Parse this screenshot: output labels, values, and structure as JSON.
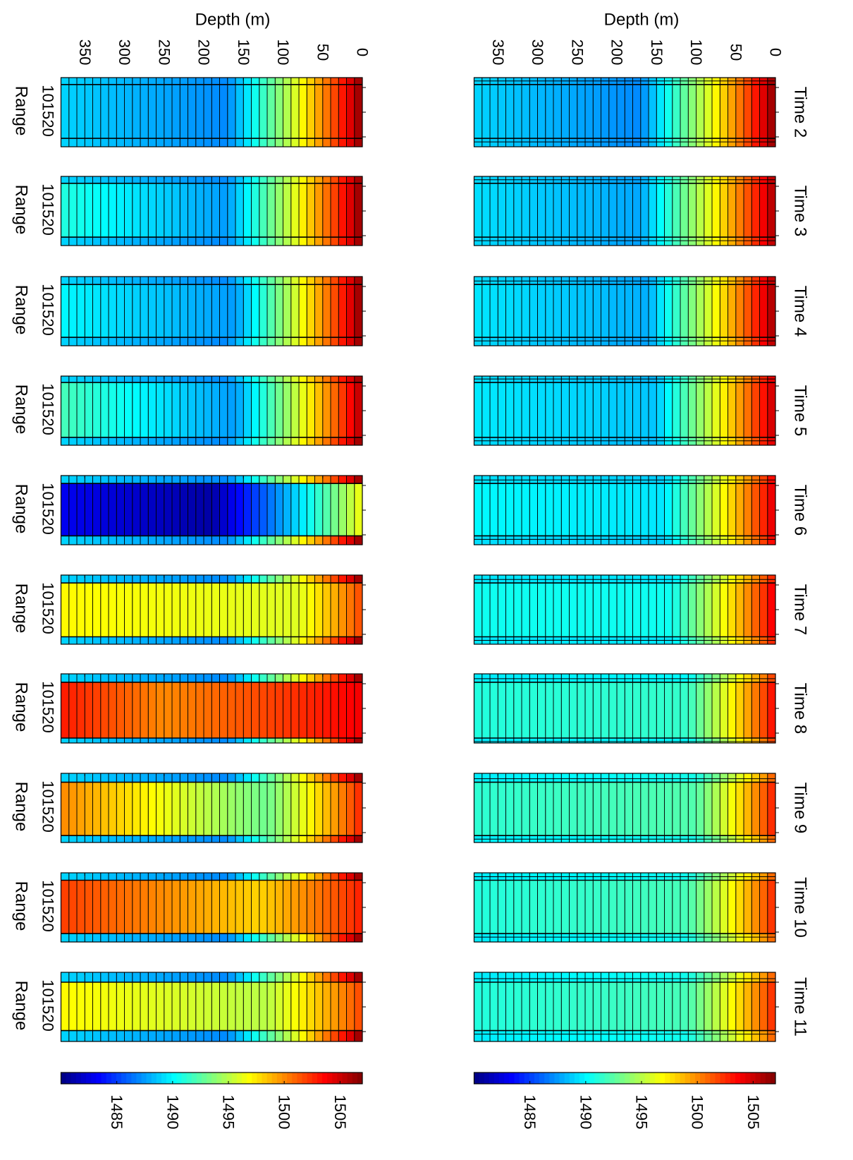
{
  "figure": {
    "orientation": "rotated 90 degrees clockwise (landscape figure on portrait page)",
    "colormap": "jet",
    "colorbar_ticks": [
      "1485",
      "1490",
      "1495",
      "1500",
      "1505"
    ],
    "colorbar_range": [
      1480,
      1507
    ],
    "colors": {
      "axes": "#000000",
      "background": "#ffffff"
    }
  },
  "chart_data": [
    {
      "type": "heatmap",
      "row": "top",
      "ylabel": "Depth (m)",
      "ytick_labels": [
        "0",
        "50",
        "100",
        "150",
        "200",
        "250",
        "300",
        "350"
      ],
      "ylim": [
        0,
        380
      ],
      "xtick_labels": [
        "10",
        "15",
        "20"
      ],
      "range_ticks": [
        10,
        15,
        20
      ],
      "depth_levels": 38,
      "panels": [
        {
          "title": "Time 2",
          "range_band": [
            9.4,
            20.3
          ],
          "surface": 1507,
          "minimum": 1487,
          "min_depth": 170,
          "bottom": 1489,
          "inner_offset": 0
        },
        {
          "title": "Time 3",
          "range_band": [
            9.4,
            20.3
          ],
          "surface": 1506,
          "minimum": 1487.5,
          "min_depth": 170,
          "bottom": 1489,
          "inner_offset": 0.3
        },
        {
          "title": "Time 4",
          "range_band": [
            9.6,
            20.3
          ],
          "surface": 1506,
          "minimum": 1487.5,
          "min_depth": 160,
          "bottom": 1489,
          "inner_offset": 0.5
        },
        {
          "title": "Time 5",
          "range_band": [
            9.3,
            20.4
          ],
          "surface": 1505,
          "minimum": 1488,
          "min_depth": 150,
          "bottom": 1489,
          "inner_offset": 0.6
        },
        {
          "title": "Time 6",
          "range_band": [
            9.6,
            20.2
          ],
          "surface": 1504,
          "minimum": 1488.5,
          "min_depth": 140,
          "bottom": 1489,
          "inner_offset": 1
        },
        {
          "title": "Time 7",
          "range_band": [
            9.6,
            20.5
          ],
          "surface": 1503,
          "minimum": 1489,
          "min_depth": 130,
          "bottom": 1489,
          "inner_offset": 1.5
        },
        {
          "title": "Time 8",
          "range_band": [
            9.7,
            21.0
          ],
          "surface": 1502,
          "minimum": 1489.5,
          "min_depth": 110,
          "bottom": 1489,
          "inner_offset": 2
        },
        {
          "title": "Time 9",
          "range_band": [
            9.8,
            20.6
          ],
          "surface": 1501,
          "minimum": 1490,
          "min_depth": 100,
          "bottom": 1489,
          "inner_offset": 2.3
        },
        {
          "title": "Time 10",
          "range_band": [
            9.5,
            20.3
          ],
          "surface": 1501,
          "minimum": 1490,
          "min_depth": 110,
          "bottom": 1489,
          "inner_offset": 2
        },
        {
          "title": "Time 11",
          "range_band": [
            10.0,
            19.8
          ],
          "surface": 1501,
          "minimum": 1490,
          "min_depth": 110,
          "bottom": 1489,
          "inner_offset": 2
        }
      ]
    },
    {
      "type": "heatmap",
      "row": "bottom",
      "ylabel": "Depth (m)",
      "xlabel": "Range",
      "ytick_labels": [
        "0",
        "50",
        "100",
        "150",
        "200",
        "250",
        "300",
        "350"
      ],
      "ylim": [
        0,
        380
      ],
      "xtick_labels": [
        "10",
        "15",
        "20"
      ],
      "range_ticks": [
        10,
        15,
        20
      ],
      "depth_levels": 38,
      "panels": [
        {
          "range_band": [
            9.4,
            20.3
          ],
          "surface": 1507,
          "minimum": 1487,
          "min_depth": 170,
          "bottom": 1489,
          "inner_offset": 0
        },
        {
          "range_band": [
            9.4,
            20.3
          ],
          "surface": 1507,
          "minimum": 1487.5,
          "min_depth": 170,
          "bottom": 1491,
          "inner_offset": 0
        },
        {
          "range_band": [
            9.6,
            20.3
          ],
          "surface": 1507,
          "minimum": 1487.5,
          "min_depth": 160,
          "bottom": 1490,
          "inner_offset": 0
        },
        {
          "range_band": [
            9.3,
            20.4
          ],
          "surface": 1506,
          "minimum": 1487.5,
          "min_depth": 160,
          "bottom": 1492,
          "inner_offset": 0
        },
        {
          "range_band": [
            9.6,
            20.2
          ],
          "surface": 1497,
          "minimum": 1481,
          "min_depth": 190,
          "bottom": 1483,
          "inner_offset": 0
        },
        {
          "range_band": [
            9.6,
            20.5
          ],
          "surface": 1502,
          "minimum": 1496,
          "min_depth": 80,
          "bottom": 1497,
          "inner_offset": 0
        },
        {
          "range_band": [
            9.7,
            21.0
          ],
          "surface": 1504,
          "minimum": 1500,
          "min_depth": 250,
          "bottom": 1503,
          "inner_offset": 0
        },
        {
          "range_band": [
            9.8,
            20.6
          ],
          "surface": 1503,
          "minimum": 1493,
          "min_depth": 120,
          "bottom": 1500,
          "inner_offset": 0
        },
        {
          "range_band": [
            9.5,
            20.3
          ],
          "surface": 1503,
          "minimum": 1498,
          "min_depth": 130,
          "bottom": 1502,
          "inner_offset": 0
        },
        {
          "range_band": [
            10.0,
            19.8
          ],
          "surface": 1502,
          "minimum": 1495,
          "min_depth": 120,
          "bottom": 1497,
          "inner_offset": 0
        }
      ]
    }
  ]
}
